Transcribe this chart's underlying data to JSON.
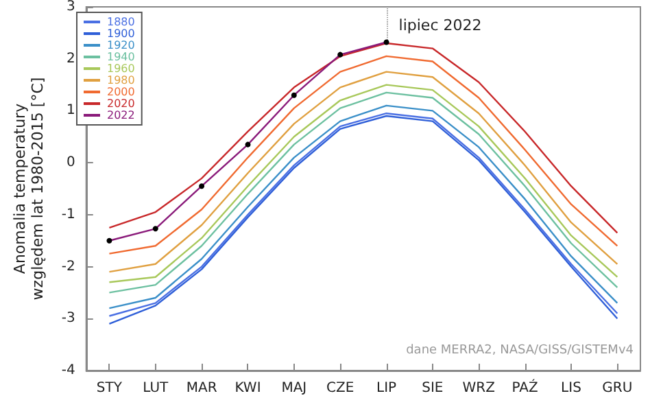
{
  "chart_data": {
    "type": "line",
    "ylabel": "Anomalia temperatury\nwzględem lat 1980-2015 [°C]",
    "categories": [
      "STY",
      "LUT",
      "MAR",
      "KWI",
      "MAJ",
      "CZE",
      "LIP",
      "SIE",
      "WRZ",
      "PAŹ",
      "LIS",
      "GRU"
    ],
    "series": [
      {
        "name": "1880",
        "color": "#4a6fe3",
        "values": [
          -2.95,
          -2.7,
          -2.0,
          -1.0,
          -0.05,
          0.7,
          0.95,
          0.85,
          0.1,
          -0.9,
          -1.95,
          -2.9
        ]
      },
      {
        "name": "1900",
        "color": "#2f5fd8",
        "values": [
          -3.1,
          -2.75,
          -2.05,
          -1.05,
          -0.1,
          0.65,
          0.9,
          0.8,
          0.05,
          -0.95,
          -2.0,
          -3.0
        ]
      },
      {
        "name": "1920",
        "color": "#3a8fc8",
        "values": [
          -2.8,
          -2.6,
          -1.85,
          -0.85,
          0.1,
          0.8,
          1.1,
          1.0,
          0.3,
          -0.7,
          -1.8,
          -2.7
        ]
      },
      {
        "name": "1940",
        "color": "#6cc0a0",
        "values": [
          -2.5,
          -2.35,
          -1.6,
          -0.6,
          0.35,
          1.05,
          1.35,
          1.25,
          0.55,
          -0.45,
          -1.55,
          -2.4
        ]
      },
      {
        "name": "1960",
        "color": "#a8c85a",
        "values": [
          -2.3,
          -2.2,
          -1.45,
          -0.45,
          0.5,
          1.2,
          1.5,
          1.4,
          0.7,
          -0.3,
          -1.4,
          -2.2
        ]
      },
      {
        "name": "1980",
        "color": "#e0a040",
        "values": [
          -2.1,
          -1.95,
          -1.2,
          -0.2,
          0.75,
          1.45,
          1.75,
          1.65,
          0.95,
          -0.05,
          -1.15,
          -1.95
        ]
      },
      {
        "name": "2000",
        "color": "#f06a30",
        "values": [
          -1.75,
          -1.6,
          -0.9,
          0.1,
          1.05,
          1.75,
          2.05,
          1.95,
          1.25,
          0.25,
          -0.8,
          -1.6
        ]
      },
      {
        "name": "2020",
        "color": "#c8282a",
        "values": [
          -1.25,
          -0.95,
          -0.3,
          0.6,
          1.45,
          2.05,
          2.3,
          2.2,
          1.55,
          0.6,
          -0.45,
          -1.35
        ]
      },
      {
        "name": "2022",
        "color": "#8a1a7a",
        "marker": "circle",
        "values": [
          -1.5,
          -1.27,
          -0.45,
          0.35,
          1.3,
          2.08,
          2.32,
          null,
          null,
          null,
          null,
          null
        ]
      }
    ],
    "ylim": [
      -4,
      3
    ],
    "yticks": [
      -4,
      -3,
      -2,
      -1,
      0,
      1,
      2,
      3
    ],
    "grid": false,
    "legend": "top left",
    "marker": "none",
    "line_style": "solid",
    "annotations": [
      {
        "text": "lipiec 2022",
        "x": "LIP",
        "y": 2.32
      },
      "dane MERRA2, NASA/GISS/GISTEMv4"
    ]
  }
}
